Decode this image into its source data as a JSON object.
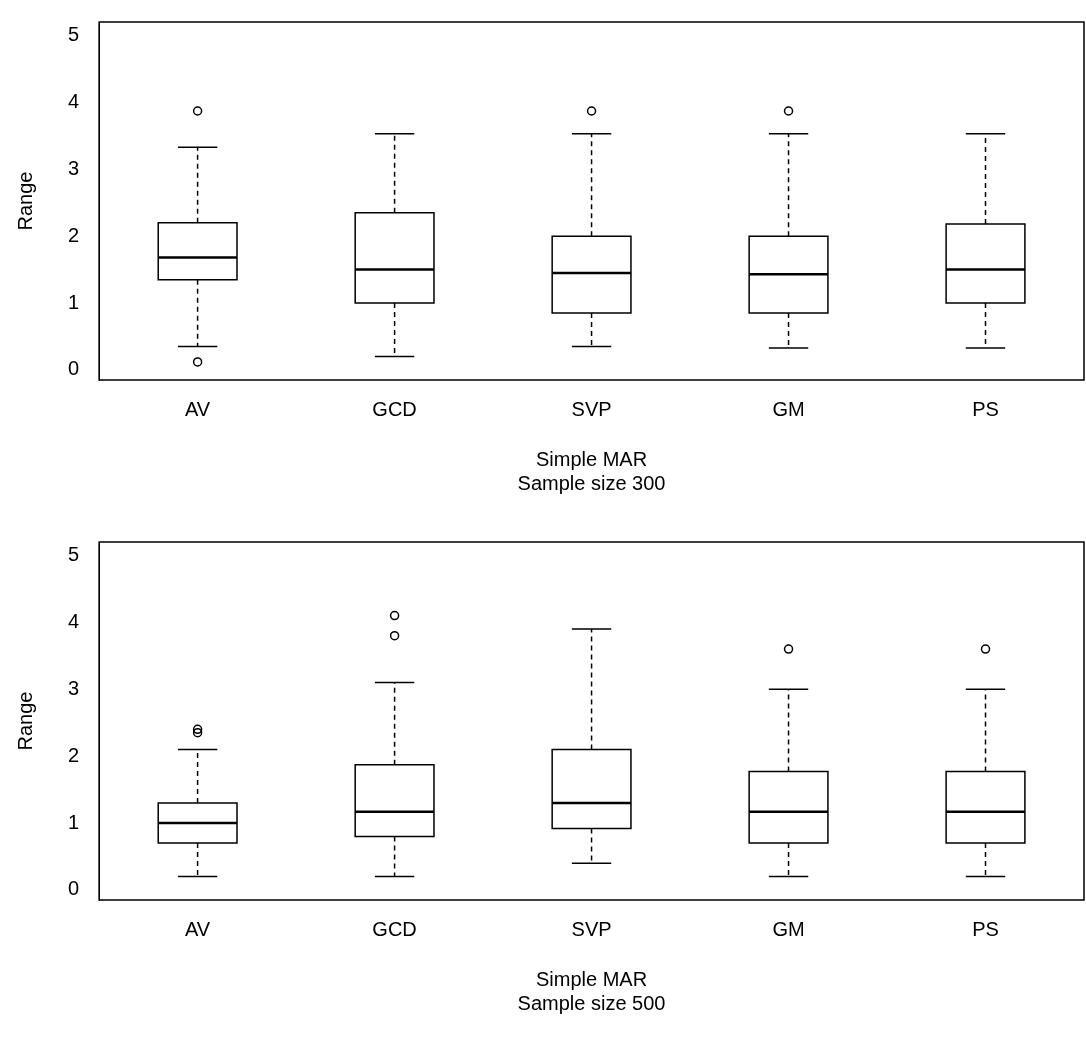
{
  "chart_data": [
    {
      "type": "box",
      "xlabel": "Simple MAR\nSample size 300",
      "ylabel": "Range",
      "categories": [
        "AV",
        "GCD",
        "SVP",
        "GM",
        "PS"
      ],
      "ylim": [
        -0.15,
        5.2
      ],
      "yticks": [
        0,
        1,
        2,
        3,
        4,
        5
      ],
      "grid": false,
      "legend": false,
      "color": "#000000",
      "boxes": [
        {
          "low": 0.35,
          "q1": 1.35,
          "median": 1.68,
          "q3": 2.2,
          "high": 3.33,
          "outliers": [
            3.87,
            0.12
          ]
        },
        {
          "low": 0.2,
          "q1": 1.0,
          "median": 1.5,
          "q3": 2.35,
          "high": 3.53
        },
        {
          "low": 0.35,
          "q1": 0.85,
          "median": 1.45,
          "q3": 2.0,
          "high": 3.53,
          "outliers": [
            3.87
          ]
        },
        {
          "low": 0.33,
          "q1": 0.85,
          "median": 1.43,
          "q3": 2.0,
          "high": 3.53,
          "outliers": [
            3.87
          ]
        },
        {
          "low": 0.33,
          "q1": 1.0,
          "median": 1.5,
          "q3": 2.18,
          "high": 3.53
        }
      ]
    },
    {
      "type": "box",
      "xlabel": "Simple MAR\nSample size 500",
      "ylabel": "Range",
      "categories": [
        "AV",
        "GCD",
        "SVP",
        "GM",
        "PS"
      ],
      "ylim": [
        -0.15,
        5.2
      ],
      "yticks": [
        0,
        1,
        2,
        3,
        4,
        5
      ],
      "grid": false,
      "legend": false,
      "color": "#000000",
      "boxes": [
        {
          "low": 0.2,
          "q1": 0.7,
          "median": 1.0,
          "q3": 1.3,
          "high": 2.1,
          "outliers": [
            2.4,
            2.35
          ]
        },
        {
          "low": 0.2,
          "q1": 0.8,
          "median": 1.17,
          "q3": 1.87,
          "high": 3.1,
          "outliers": [
            3.8,
            4.1
          ]
        },
        {
          "low": 0.4,
          "q1": 0.92,
          "median": 1.3,
          "q3": 2.1,
          "high": 3.9
        },
        {
          "low": 0.2,
          "q1": 0.7,
          "median": 1.17,
          "q3": 1.77,
          "high": 3.0,
          "outliers": [
            3.6
          ]
        },
        {
          "low": 0.2,
          "q1": 0.7,
          "median": 1.17,
          "q3": 1.77,
          "high": 3.0,
          "outliers": [
            3.6
          ]
        }
      ]
    }
  ]
}
